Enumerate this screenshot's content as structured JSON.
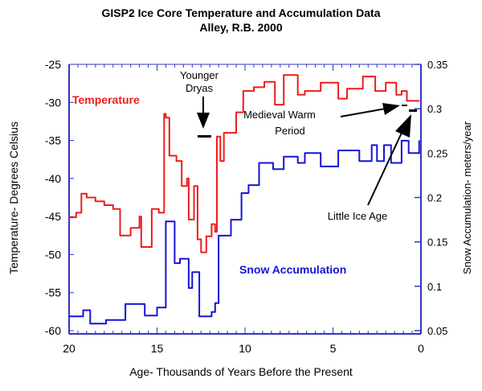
{
  "chart_data": {
    "type": "line",
    "title": "GISP2 Ice Core Temperature and Accumulation Data",
    "subtitle": "Alley, R.B. 2000",
    "xlabel": "Age- Thousands of Years Before the Present",
    "ylabel_left": "Temperature- Degrees Celsius",
    "ylabel_right": "Snow Accumulation- meters/year",
    "xlim": [
      20,
      0
    ],
    "ylim_left": [
      -60,
      -25
    ],
    "ylim_right": [
      0.05,
      0.35
    ],
    "x_ticks": [
      "20",
      "15",
      "10",
      "5",
      "0"
    ],
    "x_tick_values": [
      20,
      15,
      10,
      5,
      0
    ],
    "y_left_ticks": [
      "-25",
      "-30",
      "-35",
      "-40",
      "-45",
      "-50",
      "-55",
      "-60"
    ],
    "y_left_tick_values": [
      -25,
      -30,
      -35,
      -40,
      -45,
      -50,
      -55,
      -60
    ],
    "y_right_ticks": [
      "0.35",
      "0.3",
      "0.25",
      "0.2",
      "0.15",
      "0.1",
      "0.05"
    ],
    "y_right_tick_values": [
      0.35,
      0.3,
      0.25,
      0.2,
      0.15,
      0.1,
      0.05
    ],
    "grid": false,
    "axis_color": "#3434c4",
    "series": [
      {
        "name": "Temperature",
        "axis": "left",
        "color": "#ee1c1c",
        "x": [
          20,
          19.6,
          19.3,
          19,
          18.5,
          18,
          17.5,
          17.1,
          16.5,
          16,
          15.9,
          15.3,
          14.9,
          14.6,
          14.5,
          14.3,
          13.9,
          13.6,
          13.3,
          13.2,
          12.9,
          12.7,
          12.5,
          12.2,
          11.9,
          11.7,
          11.6,
          11.4,
          11.2,
          10.5,
          10.1,
          9.5,
          8.9,
          8.3,
          7.8,
          7,
          6.6,
          5.7,
          4.7,
          4.2,
          3.3,
          2.6,
          2,
          1.4,
          1.1,
          0.8,
          0.1
        ],
        "y": [
          -45.1,
          -44.5,
          -42,
          -42.5,
          -43,
          -43.5,
          -44,
          -47.5,
          -46.5,
          -45,
          -49,
          -44,
          -44.5,
          -31.5,
          -32,
          -37,
          -37.7,
          -41,
          -40,
          -45.4,
          -41,
          -48,
          -49.7,
          -47.6,
          -46,
          -47,
          -34.5,
          -37.7,
          -34,
          -31.3,
          -28.5,
          -28,
          -27.3,
          -30.3,
          -26.4,
          -29,
          -28.5,
          -27.4,
          -29.5,
          -28.2,
          -26.6,
          -28.5,
          -27.4,
          -29,
          -28.5,
          -29.8,
          -29.8
        ]
      },
      {
        "name": "Snow Accumulation",
        "axis": "right",
        "color": "#1414d8",
        "x": [
          20,
          19.2,
          18.8,
          17.9,
          16.8,
          15.7,
          15,
          14.5,
          14,
          13.7,
          13.2,
          13,
          12.6,
          11.9,
          11.7,
          11.5,
          10.8,
          10.2,
          9.8,
          9.2,
          8.4,
          7.8,
          7,
          6.6,
          5.7,
          4.7,
          3.5,
          2.8,
          2.5,
          2.1,
          1.7,
          1.1,
          0.7,
          0.1
        ],
        "y": [
          0.066,
          0.073,
          0.058,
          0.062,
          0.08,
          0.067,
          0.076,
          0.173,
          0.126,
          0.131,
          0.098,
          0.116,
          0.066,
          0.071,
          0.081,
          0.157,
          0.175,
          0.205,
          0.214,
          0.239,
          0.232,
          0.246,
          0.239,
          0.25,
          0.235,
          0.253,
          0.241,
          0.259,
          0.241,
          0.259,
          0.239,
          0.264,
          0.25,
          0.264
        ]
      }
    ],
    "annotations": {
      "younger_dryas": [
        "Younger",
        "Dryas"
      ],
      "medieval_warm": [
        "Medieval Warm",
        "Period"
      ],
      "little_ice_age": "Little Ice Age"
    }
  }
}
